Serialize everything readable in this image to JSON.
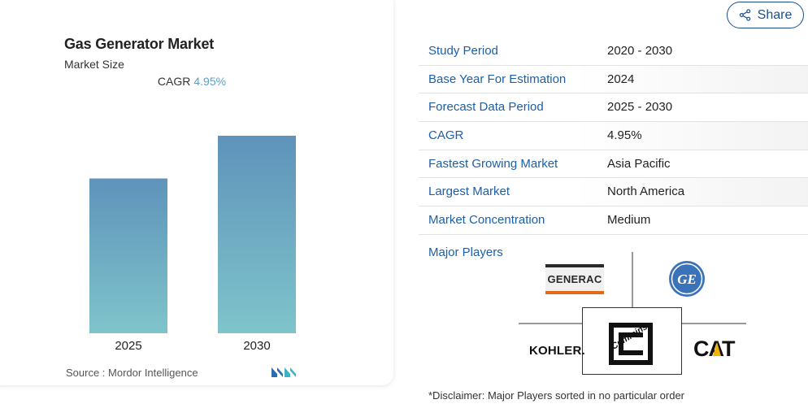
{
  "card": {
    "title": "Gas Generator Market",
    "subtitle": "Market Size",
    "cagr_label": "CAGR",
    "cagr_value": "4.95%",
    "source": "Source :  Mordor Intelligence"
  },
  "chart_data": {
    "type": "bar",
    "categories": [
      "2025",
      "2030"
    ],
    "values": [
      1.0,
      1.276
    ],
    "value_unit": "relative to 2025 (no values printed)",
    "title": "Gas Generator Market",
    "subtitle": "Market Size",
    "xlabel": "",
    "ylabel": "",
    "grid": false,
    "bar_color_top": "#5f93bb",
    "bar_color_bottom": "#7fc4cb"
  },
  "share": {
    "label": "Share"
  },
  "table": {
    "rows": [
      {
        "key": "Study Period",
        "value": "2020 - 2030"
      },
      {
        "key": "Base Year For Estimation",
        "value": "2024"
      },
      {
        "key": "Forecast Data Period",
        "value": "2025 - 2030"
      },
      {
        "key": "CAGR",
        "value": "4.95%"
      },
      {
        "key": "Fastest Growing Market",
        "value": "Asia Pacific"
      },
      {
        "key": "Largest Market",
        "value": "North America"
      },
      {
        "key": "Market Concentration",
        "value": "Medium"
      }
    ]
  },
  "players": {
    "label": "Major Players",
    "logos": {
      "generac": "GENERAC",
      "ge": "GE",
      "kohler": "KOHLER.",
      "cummins": "Cummins",
      "cat": "CAT"
    }
  },
  "disclaimer": "*Disclaimer: Major Players sorted in no particular order",
  "colors": {
    "accent_blue": "#1b5fa8",
    "share_border": "#1b4f8a",
    "cagr_value": "#5aa0c8"
  }
}
